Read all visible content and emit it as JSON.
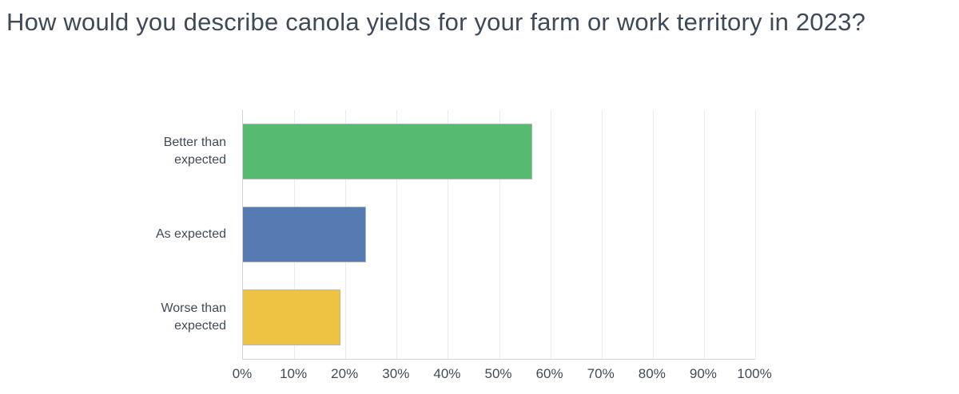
{
  "page": {
    "title": "How would you describe canola yields for your farm or work territory in 2023?"
  },
  "colors": {
    "background": "#ffffff",
    "title_text": "#3e4a57",
    "label_text": "#3f4b58",
    "tick_text": "#3f4b58",
    "gridline": "#eaeaea",
    "axis_line": "#d2d2d2",
    "bar_border": "#b4b4b4",
    "bar_green": "#56ba71",
    "bar_blue": "#567ab2",
    "bar_yellow": "#eec242"
  },
  "chart_data": {
    "type": "bar",
    "orientation": "horizontal",
    "title": "How would you describe canola yields for your farm or work territory in 2023?",
    "categories": [
      "Better than expected",
      "As expected",
      "Worse than expected"
    ],
    "values": [
      56.5,
      24,
      19
    ],
    "bar_colors": [
      "#56ba71",
      "#567ab2",
      "#eec242"
    ],
    "xlabel": "",
    "ylabel": "",
    "xlim": [
      0,
      100
    ],
    "x_ticks": [
      0,
      10,
      20,
      30,
      40,
      50,
      60,
      70,
      80,
      90,
      100
    ],
    "x_tick_labels": [
      "0%",
      "10%",
      "20%",
      "30%",
      "40%",
      "50%",
      "60%",
      "70%",
      "80%",
      "90%",
      "100%"
    ],
    "grid": true,
    "legend": false
  }
}
